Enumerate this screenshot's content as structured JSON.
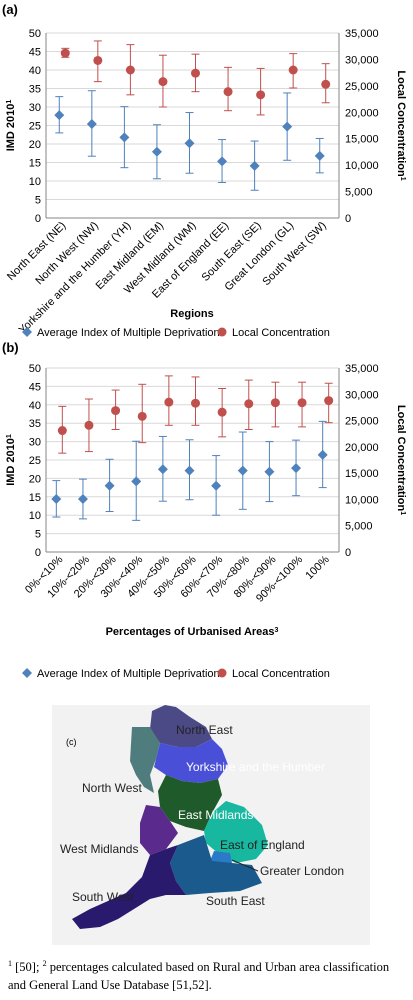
{
  "panels": {
    "a": "(a)",
    "b": "(b)",
    "c": "(c)"
  },
  "chart_data": [
    {
      "type": "scatter",
      "title": "",
      "xlabel": "Regions",
      "ylabel_left": "IMD 2010",
      "ylabel_left_sup": "1",
      "ylabel_right": "Local Concentration",
      "ylabel_right_sup": "1",
      "ylim_left": [
        0,
        50
      ],
      "yticks_left": [
        "0",
        "5",
        "10",
        "15",
        "20",
        "25",
        "30",
        "35",
        "40",
        "45",
        "50"
      ],
      "ylim_right": [
        0,
        35000
      ],
      "yticks_right": [
        "0",
        "5,000",
        "10,000",
        "15,000",
        "20,000",
        "25,000",
        "30,000",
        "35,000"
      ],
      "grid": true,
      "legend_position": "bottom",
      "categories": [
        "North East (NE)",
        "North West (NW)",
        "Yorkshire and the Humber (YH)",
        "East Midland (EM)",
        "West Midland (WM)",
        "East of England (EE)",
        "South East (SE)",
        "Great London (GL)",
        "South West (SW)"
      ],
      "series": [
        {
          "name": "Average Index of Multiple Deprivation",
          "axis": "left",
          "color": "#4f81bd",
          "marker": "diamond",
          "values": [
            27.8,
            25.4,
            21.8,
            17.9,
            20.2,
            15.3,
            14.1,
            24.7,
            16.8
          ],
          "error_low": [
            23.0,
            16.7,
            13.6,
            10.6,
            12.1,
            9.6,
            7.5,
            15.6,
            12.2
          ],
          "error_high": [
            32.8,
            34.4,
            30.1,
            25.2,
            28.5,
            21.2,
            20.8,
            33.8,
            21.5
          ]
        },
        {
          "name": "Local Concentration",
          "axis": "right",
          "color": "#c0504d",
          "marker": "circle",
          "values": [
            31200,
            29800,
            28000,
            25800,
            27400,
            23900,
            23300,
            28000,
            25300
          ],
          "error_low": [
            30400,
            25800,
            23300,
            21000,
            23900,
            20300,
            19500,
            24600,
            21800
          ],
          "error_high": [
            32100,
            33500,
            32800,
            30800,
            31000,
            28500,
            28300,
            31100,
            29200
          ]
        }
      ]
    },
    {
      "type": "scatter",
      "title": "",
      "xlabel": "Percentages of Urbanised Areas",
      "xlabel_sup": "3",
      "ylabel_left": "IMD 2010",
      "ylabel_left_sup": "1",
      "ylabel_right": "Local Concentration",
      "ylabel_right_sup": "1",
      "ylim_left": [
        0,
        50
      ],
      "yticks_left": [
        "0",
        "5",
        "10",
        "15",
        "20",
        "25",
        "30",
        "35",
        "40",
        "45",
        "50"
      ],
      "ylim_right": [
        0,
        35000
      ],
      "yticks_right": [
        "0",
        "5,000",
        "10,000",
        "15,000",
        "20,000",
        "25,000",
        "30,000",
        "35,000"
      ],
      "grid": true,
      "legend_position": "bottom",
      "categories": [
        "0%-<10%",
        "10%-<20%",
        "20%-<30%",
        "30%-<40%",
        "40%-<50%",
        "50%-<60%",
        "60%-<70%",
        "70%-<80%",
        "80%-<90%",
        "90%-<100%",
        "100%"
      ],
      "series": [
        {
          "name": "Average Index of Multiple Deprivation",
          "axis": "left",
          "color": "#4f81bd",
          "marker": "diamond",
          "values": [
            14.4,
            14.4,
            18.0,
            19.2,
            22.5,
            22.1,
            18.0,
            22.1,
            21.8,
            22.8,
            26.4
          ],
          "error_low": [
            9.5,
            9.0,
            11.0,
            8.6,
            13.8,
            14.2,
            10.0,
            11.6,
            13.7,
            15.3,
            17.5
          ],
          "error_high": [
            19.4,
            19.8,
            25.2,
            30.1,
            31.4,
            30.5,
            26.2,
            32.6,
            30.0,
            30.4,
            35.5
          ]
        },
        {
          "name": "Local Concentration",
          "axis": "right",
          "color": "#c0504d",
          "marker": "circle",
          "values": [
            23100,
            24100,
            26900,
            25800,
            28500,
            28300,
            26600,
            28200,
            28400,
            28400,
            28800
          ],
          "error_low": [
            18800,
            19100,
            23300,
            20800,
            24100,
            24100,
            21900,
            23300,
            23800,
            23800,
            24600
          ],
          "error_high": [
            27700,
            29100,
            30800,
            31900,
            33500,
            33300,
            31100,
            32700,
            32300,
            32300,
            32100
          ]
        }
      ]
    }
  ],
  "map": {
    "regions": [
      {
        "name": "North East",
        "color": "#4b4a86"
      },
      {
        "name": "North West",
        "color": "#4f7c7c"
      },
      {
        "name": "Yorkshire and the Humber",
        "color": "#4a4fd8"
      },
      {
        "name": "East Midlands",
        "color": "#1e5a2a"
      },
      {
        "name": "West Midlands",
        "color": "#5a2a8c"
      },
      {
        "name": "East of England",
        "color": "#18b8a0"
      },
      {
        "name": "Greater London",
        "color": "#2a7ac8"
      },
      {
        "name": "South East",
        "color": "#1a5a8c"
      },
      {
        "name": "South West",
        "color": "#2a1a6e"
      }
    ]
  },
  "footnote": {
    "sup1": "1",
    "t1": " [50]; ",
    "sup2": "2",
    "t2": " percentages calculated based on Rural and Urban area classification and General Land Use Database [51,52]."
  }
}
